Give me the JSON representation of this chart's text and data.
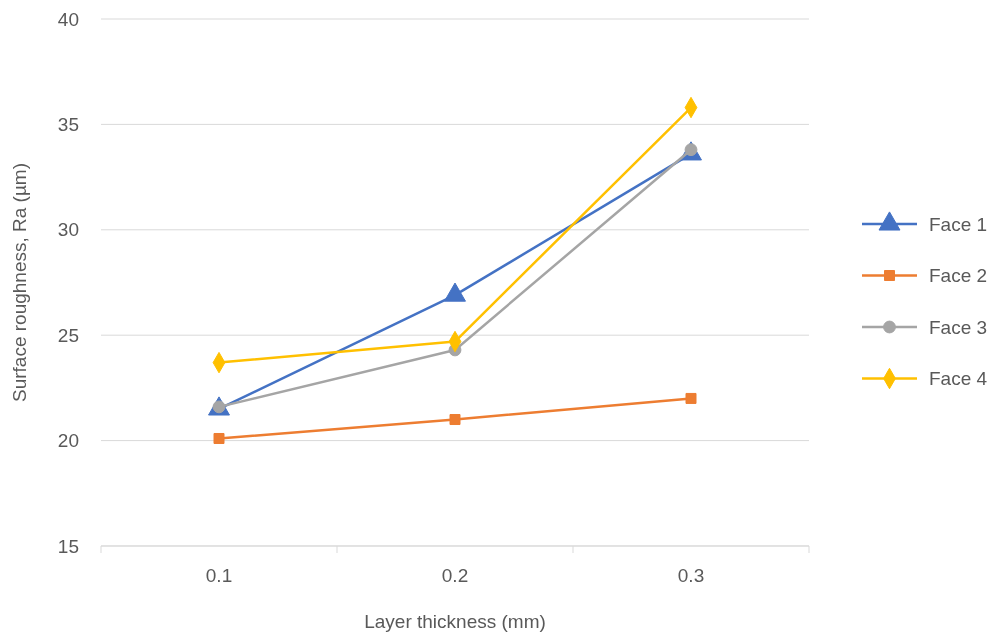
{
  "chart_data": {
    "type": "line",
    "xlabel": "Layer thickness (mm)",
    "ylabel": "Surface roughness, Ra (µm)",
    "categories": [
      "0.1",
      "0.2",
      "0.3"
    ],
    "ylim": [
      15,
      40
    ],
    "yticks": [
      15,
      20,
      25,
      30,
      35,
      40
    ],
    "grid": "y",
    "legend": "right",
    "series": [
      {
        "name": "Face 1",
        "color": "#4472c4",
        "marker": "triangle",
        "values": [
          21.5,
          26.9,
          33.6
        ]
      },
      {
        "name": "Face 2",
        "color": "#ed7d31",
        "marker": "square",
        "values": [
          20.1,
          21.0,
          22.0
        ]
      },
      {
        "name": "Face 3",
        "color": "#a5a5a5",
        "marker": "circle",
        "values": [
          21.6,
          24.3,
          33.8
        ]
      },
      {
        "name": "Face 4",
        "color": "#ffc000",
        "marker": "diamond",
        "values": [
          23.7,
          24.7,
          35.8
        ]
      }
    ]
  }
}
